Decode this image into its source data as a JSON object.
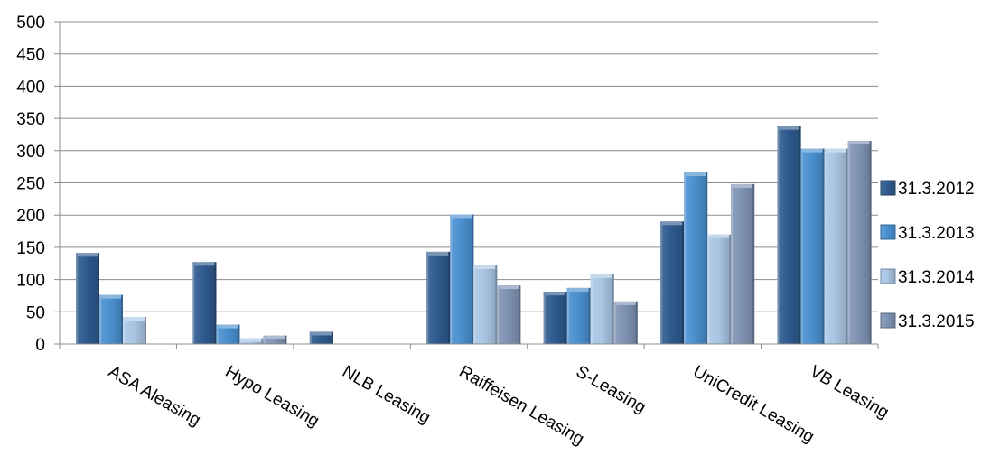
{
  "chart_data": {
    "type": "bar",
    "categories": [
      "ASA Aleasing",
      "Hypo Leasing",
      "NLB Leasing",
      "Raiffeisen Leasing",
      "S-Leasing",
      "UniCredit Leasing",
      "VB Leasing"
    ],
    "series": [
      {
        "name": "31.3.2012",
        "color": "#2E5A8E",
        "values": [
          141,
          127,
          19,
          143,
          81,
          190,
          338
        ]
      },
      {
        "name": "31.3.2013",
        "color": "#4A90D0",
        "values": [
          76,
          30,
          0,
          201,
          87,
          266,
          303
        ]
      },
      {
        "name": "31.3.2014",
        "color": "#A9C6E4",
        "values": [
          42,
          9,
          0,
          122,
          108,
          170,
          303
        ]
      },
      {
        "name": "31.3.2015",
        "color": "#7F93B4",
        "values": [
          0,
          13,
          0,
          91,
          66,
          248,
          315
        ]
      }
    ],
    "yticks": [
      0,
      50,
      100,
      150,
      200,
      250,
      300,
      350,
      400,
      450,
      500
    ],
    "ylim": [
      0,
      500
    ],
    "title": "",
    "xlabel": "",
    "ylabel": "",
    "grid": true,
    "legend_position": "right"
  }
}
